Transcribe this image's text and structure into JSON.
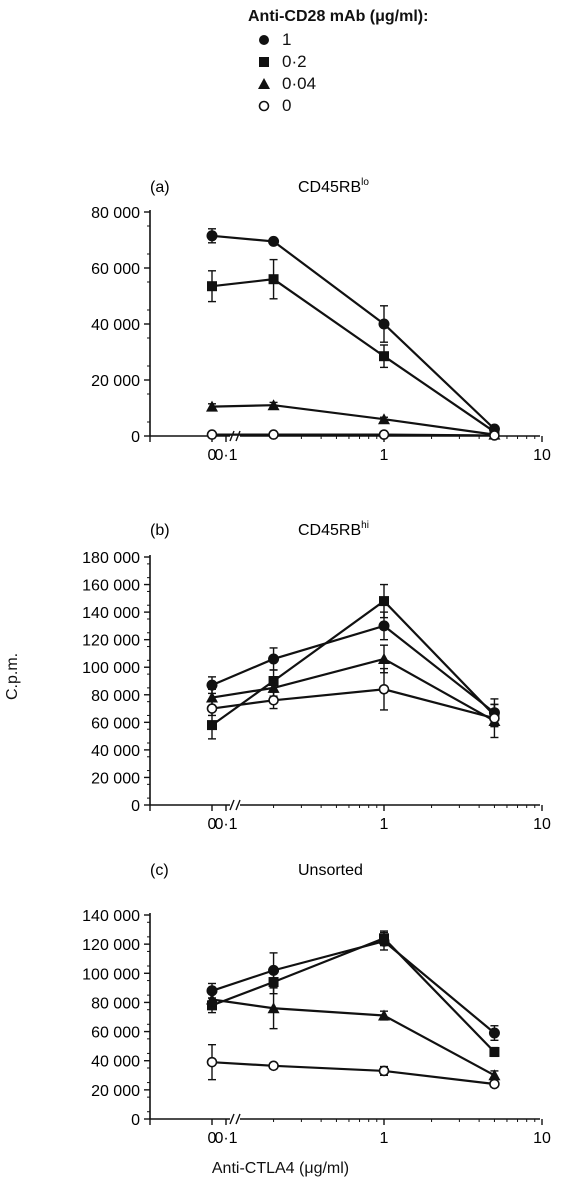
{
  "legend": {
    "title": "Anti-CD28 mAb (μg/ml):",
    "items": [
      {
        "label": "1",
        "marker": "filled-circle"
      },
      {
        "label": "0·2",
        "marker": "filled-square"
      },
      {
        "label": "0·04",
        "marker": "filled-triangle"
      },
      {
        "label": "0",
        "marker": "open-circle"
      }
    ]
  },
  "ylabel": "C.p.m.",
  "xlabel": "Anti-CTLA4 (μg/ml)",
  "chart_data": [
    {
      "type": "line",
      "panel_label": "(a)",
      "title": "CD45RB",
      "title_sup": "lo",
      "x_scale": "log with zero break",
      "x_ticks": [
        "0",
        "0·1",
        "1",
        "10"
      ],
      "x": [
        0,
        0.2,
        1,
        5
      ],
      "ylim": [
        0,
        80000
      ],
      "y_ticks": [
        "0",
        "20 000",
        "40 000",
        "60 000",
        "80 000"
      ],
      "series": [
        {
          "marker": "filled-circle",
          "values": [
            71500,
            69500,
            40000,
            2500
          ],
          "err": [
            2500,
            1000,
            6500,
            1000
          ]
        },
        {
          "marker": "filled-square",
          "values": [
            53500,
            56000,
            28500,
            1500
          ],
          "err": [
            5500,
            7000,
            4000,
            800
          ]
        },
        {
          "marker": "filled-triangle",
          "values": [
            10500,
            11000,
            6000,
            500
          ],
          "err": [
            1000,
            1000,
            700,
            300
          ]
        },
        {
          "marker": "open-circle",
          "values": [
            500,
            500,
            500,
            200
          ],
          "err": [
            300,
            300,
            300,
            100
          ]
        }
      ]
    },
    {
      "type": "line",
      "panel_label": "(b)",
      "title": "CD45RB",
      "title_sup": "hi",
      "x_scale": "log with zero break",
      "x_ticks": [
        "0",
        "0·1",
        "1",
        "10"
      ],
      "x": [
        0,
        0.2,
        1,
        5
      ],
      "ylim": [
        0,
        180000
      ],
      "y_ticks": [
        "0",
        "20 000",
        "40 000",
        "60 000",
        "80 000",
        "100 000",
        "120 000",
        "140 000",
        "160 000",
        "180 000"
      ],
      "series": [
        {
          "marker": "filled-circle",
          "values": [
            87000,
            106000,
            130000,
            67000
          ],
          "err": [
            6000,
            8000,
            10000,
            10000
          ]
        },
        {
          "marker": "filled-square",
          "values": [
            58000,
            90000,
            148000,
            65000
          ],
          "err": [
            10000,
            8000,
            12000,
            8000
          ]
        },
        {
          "marker": "filled-triangle",
          "values": [
            78000,
            85000,
            106000,
            61000
          ],
          "err": [
            6000,
            6000,
            10000,
            12000
          ]
        },
        {
          "marker": "open-circle",
          "values": [
            70000,
            76000,
            84000,
            63000
          ],
          "err": [
            5000,
            6000,
            15000,
            6000
          ]
        }
      ]
    },
    {
      "type": "line",
      "panel_label": "(c)",
      "title": "Unsorted",
      "title_sup": "",
      "x_scale": "log with zero break",
      "x_ticks": [
        "0",
        "0·1",
        "1",
        "10"
      ],
      "x": [
        0,
        0.2,
        1,
        5
      ],
      "ylim": [
        0,
        140000
      ],
      "y_ticks": [
        "0",
        "20 000",
        "40 000",
        "60 000",
        "80 000",
        "100 000",
        "120 000",
        "140 000"
      ],
      "series": [
        {
          "marker": "filled-circle",
          "values": [
            88000,
            102000,
            122000,
            59000
          ],
          "err": [
            5000,
            12000,
            6000,
            5000
          ]
        },
        {
          "marker": "filled-square",
          "values": [
            78000,
            94000,
            124000,
            46000
          ],
          "err": [
            5000,
            8000,
            5000,
            3000
          ]
        },
        {
          "marker": "filled-triangle",
          "values": [
            82000,
            76000,
            71000,
            30000
          ],
          "err": [
            5000,
            14000,
            3000,
            3000
          ]
        },
        {
          "marker": "open-circle",
          "values": [
            39000,
            36500,
            33000,
            24000
          ],
          "err": [
            12000,
            2000,
            3000,
            2000
          ]
        }
      ]
    }
  ]
}
